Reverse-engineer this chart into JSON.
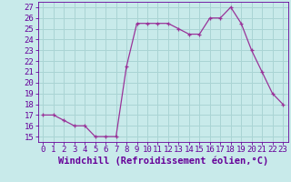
{
  "x": [
    0,
    1,
    2,
    3,
    4,
    5,
    6,
    7,
    8,
    9,
    10,
    11,
    12,
    13,
    14,
    15,
    16,
    17,
    18,
    19,
    20,
    21,
    22,
    23
  ],
  "y": [
    17,
    17,
    16.5,
    16,
    16,
    15,
    15,
    15,
    21.5,
    25.5,
    25.5,
    25.5,
    25.5,
    25,
    24.5,
    24.5,
    26,
    26,
    27,
    25.5,
    23,
    21,
    19,
    18
  ],
  "line_color": "#993399",
  "marker": "+",
  "bg_color": "#c8eaea",
  "grid_color": "#aad4d4",
  "xlabel": "Windchill (Refroidissement éolien,°C)",
  "ylabel_ticks": [
    15,
    16,
    17,
    18,
    19,
    20,
    21,
    22,
    23,
    24,
    25,
    26,
    27
  ],
  "ylim": [
    14.5,
    27.5
  ],
  "xlim": [
    -0.5,
    23.5
  ],
  "tick_fontsize": 6.5,
  "xlabel_fontsize": 7.5,
  "label_color": "#660099"
}
